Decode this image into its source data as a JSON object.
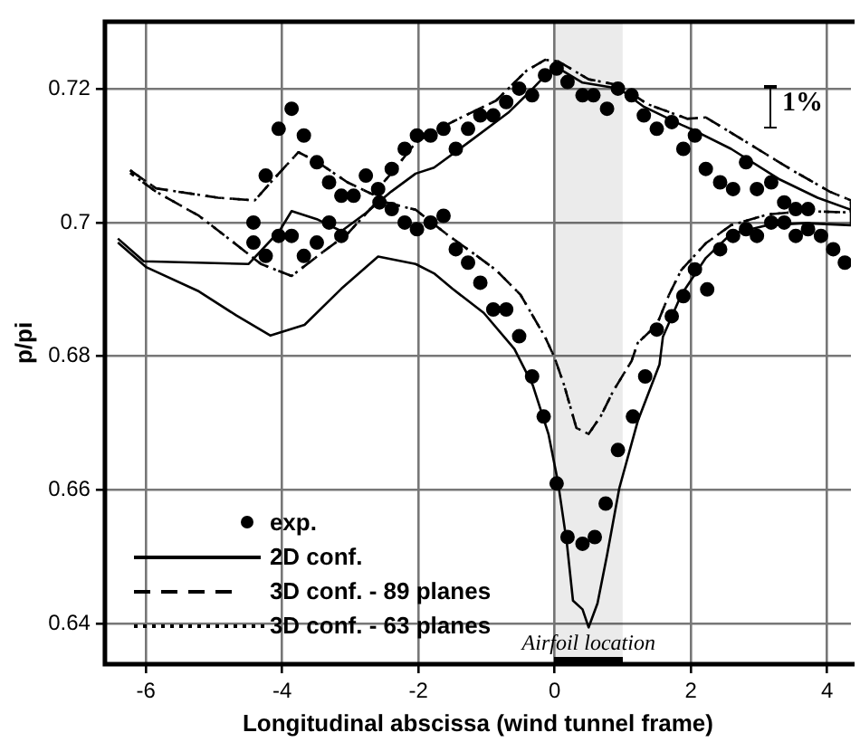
{
  "chart_data": {
    "type": "line",
    "xlabel": "Longitudinal abscissa (wind tunnel frame)",
    "ylabel": "p/pi",
    "xlim": [
      -6.6,
      4.35
    ],
    "ylim": [
      0.634,
      0.73
    ],
    "xticks": [
      -6,
      -4,
      -2,
      0,
      2,
      4
    ],
    "yticks": [
      0.64,
      0.66,
      0.68,
      0.7,
      0.72
    ],
    "grid": true,
    "legend": "bottom left",
    "annotations": [
      "1%"
    ],
    "bands": [
      {
        "axis": "x",
        "from": 0,
        "to": 1,
        "label": "Airfoil location",
        "color": "#000000"
      }
    ],
    "series": [
      {
        "name": "exp.",
        "type": "scatter",
        "marker": "circle",
        "color": "#000000",
        "x": [
          -4.42,
          -4.42,
          -4.24,
          -4.24,
          -4.05,
          -4.05,
          -3.86,
          -3.86,
          -3.68,
          -3.68,
          -3.49,
          -3.49,
          -3.31,
          -3.31,
          -3.13,
          -3.13,
          -2.95,
          -2.77,
          -2.59,
          -2.57,
          -2.39,
          -2.39,
          -2.2,
          -2.2,
          -2.02,
          -2.02,
          -1.82,
          -1.82,
          -1.63,
          -1.63,
          -1.45,
          -1.45,
          -1.27,
          -1.27,
          -1.09,
          -1.09,
          -0.9,
          -0.9,
          -0.71,
          -0.71,
          -0.52,
          -0.52,
          -0.33,
          -0.33,
          -0.16,
          -0.14,
          0.03,
          0.03,
          0.19,
          0.19,
          0.41,
          0.41,
          0.57,
          0.59,
          0.75,
          0.77,
          0.93,
          0.93,
          1.13,
          1.15,
          1.31,
          1.33,
          1.5,
          1.5,
          1.72,
          1.72,
          1.89,
          1.89,
          2.06,
          2.06,
          2.22,
          2.24,
          2.43,
          2.43,
          2.62,
          2.62,
          2.81,
          2.81,
          2.97,
          2.97,
          3.18,
          3.18,
          3.37,
          3.37,
          3.54,
          3.54,
          3.72,
          3.72,
          3.91,
          4.09,
          4.26
        ],
        "values": [
          0.7,
          0.697,
          0.707,
          0.695,
          0.714,
          0.698,
          0.717,
          0.698,
          0.713,
          0.695,
          0.709,
          0.697,
          0.706,
          0.7,
          0.704,
          0.698,
          0.704,
          0.707,
          0.705,
          0.703,
          0.708,
          0.702,
          0.711,
          0.7,
          0.713,
          0.699,
          0.713,
          0.7,
          0.714,
          0.701,
          0.711,
          0.696,
          0.714,
          0.694,
          0.716,
          0.691,
          0.716,
          0.687,
          0.718,
          0.687,
          0.72,
          0.683,
          0.719,
          0.677,
          0.671,
          0.722,
          0.723,
          0.661,
          0.721,
          0.653,
          0.719,
          0.652,
          0.719,
          0.653,
          0.658,
          0.717,
          0.72,
          0.666,
          0.719,
          0.671,
          0.716,
          0.677,
          0.714,
          0.684,
          0.715,
          0.686,
          0.711,
          0.689,
          0.713,
          0.693,
          0.708,
          0.69,
          0.706,
          0.696,
          0.705,
          0.698,
          0.709,
          0.699,
          0.705,
          0.698,
          0.706,
          0.7,
          0.703,
          0.7,
          0.702,
          0.698,
          0.702,
          0.699,
          0.698,
          0.696,
          0.694
        ]
      },
      {
        "name": "2D conf.",
        "type": "line",
        "marker": "none",
        "line_style": "solid",
        "color": "#000000",
        "x": [
          -6.41,
          -6.03,
          -4.49,
          -4.04,
          -3.86,
          -3.49,
          -3.13,
          -2.77,
          -2.4,
          -2.04,
          -1.77,
          -1.22,
          -0.68,
          -0.32,
          0,
          0.41,
          0.95,
          1.31,
          1.86,
          2.04,
          2.59,
          3.31,
          3.86,
          4.35,
          4.35,
          3.67,
          3.13,
          2.59,
          2.22,
          1.86,
          1.59,
          1.54,
          1.22,
          0.95,
          0.77,
          0.63,
          0.5,
          0.41,
          0.27,
          0.18,
          0.05,
          -0.09,
          -0.32,
          -0.59,
          -1.04,
          -1.5,
          -1.77,
          -2.04,
          -2.59,
          -3.13,
          -3.67,
          -4.17,
          -4.67,
          -5.22,
          -5.99,
          -6.41
        ],
        "values": [
          0.6976,
          0.6942,
          0.6938,
          0.6987,
          0.7017,
          0.7005,
          0.6987,
          0.7014,
          0.7046,
          0.7073,
          0.7082,
          0.7123,
          0.7164,
          0.72,
          0.7234,
          0.7209,
          0.72,
          0.7173,
          0.7146,
          0.7138,
          0.711,
          0.7064,
          0.7037,
          0.7019,
          0.6996,
          0.6999,
          0.6996,
          0.6983,
          0.6947,
          0.6892,
          0.6829,
          0.6788,
          0.6703,
          0.6603,
          0.6503,
          0.6431,
          0.6395,
          0.6422,
          0.6435,
          0.6521,
          0.6612,
          0.6684,
          0.6757,
          0.6811,
          0.6865,
          0.6901,
          0.6924,
          0.6938,
          0.6949,
          0.6901,
          0.6847,
          0.6831,
          0.6861,
          0.6897,
          0.6933,
          0.697
        ]
      },
      {
        "name": "3D conf. - 89 planes",
        "type": "line",
        "marker": "none",
        "line_style": "dashed",
        "color": "#000000",
        "x": [
          -6.23,
          -5.85,
          -4.94,
          -4.4,
          -4.13,
          -3.76,
          -3.49,
          -3.04,
          -2.67,
          -2.4,
          -2.04,
          -1.68,
          -1.41,
          -0.86,
          -0.41,
          -0.14,
          0.05,
          0.5,
          0.95,
          1.36,
          1.95,
          2.22,
          2.77,
          3.49,
          4.04,
          4.35,
          4.35,
          3.67,
          3.13,
          2.59,
          2.22,
          1.86,
          1.68,
          1.5,
          1.22,
          1.13,
          0.86,
          0.68,
          0.5,
          0.32,
          0.14,
          0,
          -0.14,
          -0.5,
          -0.86,
          -1.22,
          -1.59,
          -2.04,
          -2.59,
          -3.04,
          -3.4,
          -3.86,
          -4.31,
          -4.76,
          -5.22,
          -5.85,
          -6.23
        ],
        "values": [
          0.7078,
          0.7051,
          0.7037,
          0.7033,
          0.7064,
          0.7105,
          0.7091,
          0.706,
          0.7042,
          0.7073,
          0.7119,
          0.7141,
          0.7155,
          0.7182,
          0.7227,
          0.7243,
          0.7241,
          0.7214,
          0.7205,
          0.7177,
          0.7155,
          0.7157,
          0.7123,
          0.7078,
          0.7046,
          0.7033,
          0.7015,
          0.7017,
          0.7012,
          0.6996,
          0.6969,
          0.6929,
          0.6892,
          0.6847,
          0.682,
          0.6793,
          0.6748,
          0.6711,
          0.6684,
          0.6693,
          0.6757,
          0.6798,
          0.6829,
          0.6892,
          0.6929,
          0.6956,
          0.6983,
          0.7019,
          0.7033,
          0.6983,
          0.6956,
          0.692,
          0.6938,
          0.6974,
          0.701,
          0.7046,
          0.7074
        ]
      },
      {
        "name": "3D conf. - 63 planes",
        "type": "line",
        "marker": "none",
        "line_style": "dotted",
        "color": "#000000",
        "x": [
          -6.23,
          -5.85,
          -4.94,
          -4.4,
          -4.13,
          -3.76,
          -3.49,
          -3.04,
          -2.67,
          -2.4,
          -2.04,
          -1.68,
          -1.41,
          -0.86,
          -0.41,
          -0.14,
          0.05,
          0.5,
          0.95,
          1.36,
          1.95,
          2.22,
          2.77,
          3.49,
          4.04,
          4.35,
          4.35,
          3.67,
          3.13,
          2.59,
          2.22,
          1.86,
          1.68,
          1.5,
          1.22,
          1.13,
          0.86,
          0.68,
          0.5,
          0.32,
          0.14,
          0,
          -0.14,
          -0.5,
          -0.86,
          -1.22,
          -1.59,
          -2.04,
          -2.59,
          -3.04,
          -3.4,
          -3.86,
          -4.31,
          -4.76,
          -5.22,
          -5.85,
          -6.23
        ],
        "values": [
          0.7078,
          0.7051,
          0.7037,
          0.7033,
          0.7064,
          0.7105,
          0.7091,
          0.706,
          0.7042,
          0.7073,
          0.7119,
          0.7141,
          0.7155,
          0.7182,
          0.7227,
          0.7243,
          0.7241,
          0.7214,
          0.7205,
          0.7177,
          0.7155,
          0.7157,
          0.7123,
          0.7078,
          0.7046,
          0.7033,
          0.7015,
          0.7017,
          0.7012,
          0.6996,
          0.6969,
          0.6929,
          0.6892,
          0.6847,
          0.682,
          0.6793,
          0.6748,
          0.6711,
          0.6684,
          0.6693,
          0.6757,
          0.6798,
          0.6829,
          0.6892,
          0.6929,
          0.6956,
          0.6983,
          0.7019,
          0.7033,
          0.6983,
          0.6956,
          0.692,
          0.6938,
          0.6974,
          0.701,
          0.7046,
          0.7074
        ]
      }
    ]
  }
}
